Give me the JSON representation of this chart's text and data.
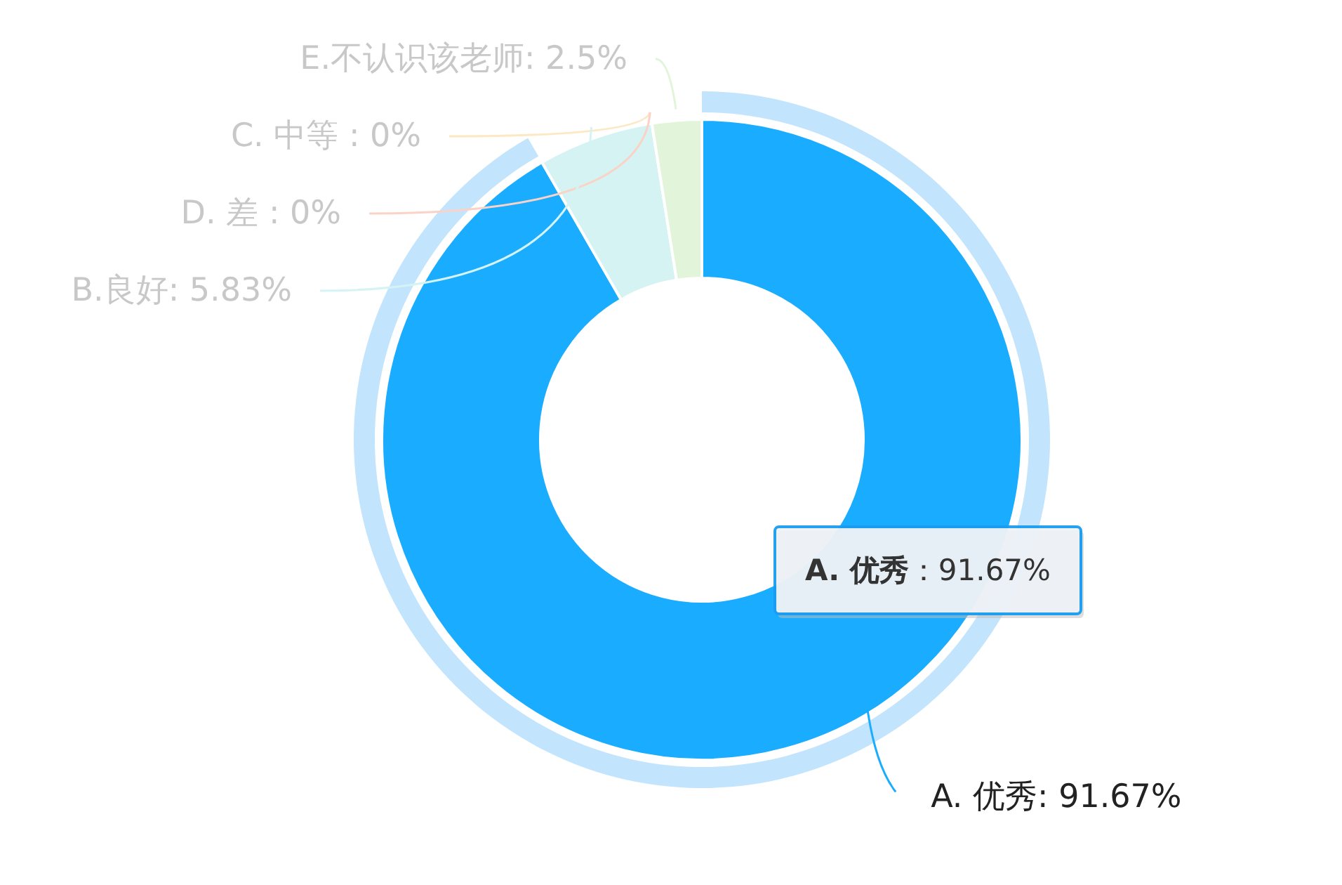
{
  "chart_data": {
    "type": "donut",
    "categories": [
      "A. 优秀",
      "B.良好",
      "C. 中等",
      "D. 差",
      "E.不认识该老师"
    ],
    "values": [
      91.67,
      5.83,
      0,
      0,
      2.5
    ],
    "value_labels": [
      ": 91.67%",
      ": 5.83%",
      " : 0%",
      " : 0%",
      ": 2.5%"
    ],
    "colors": [
      "#1aadff",
      "#d5f3f3",
      "#fde8c4",
      "#fad3c6",
      "#e2f4d9"
    ],
    "annotations": [
      "**A. 优秀**：91.67%"
    ]
  }
}
